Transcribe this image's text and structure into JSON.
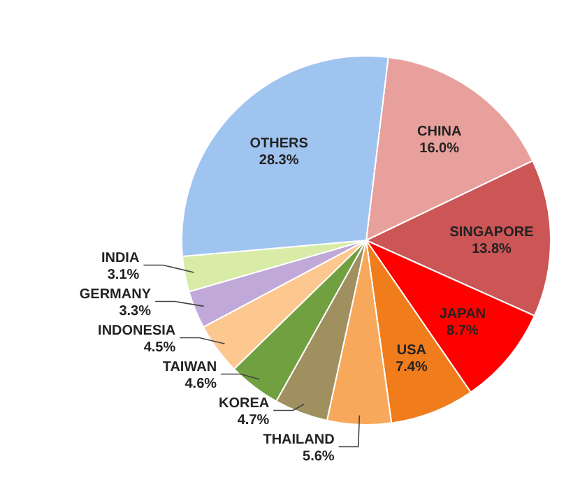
{
  "chart_data": {
    "type": "pie",
    "categories": [
      "CHINA",
      "SINGAPORE",
      "JAPAN",
      "USA",
      "THAILAND",
      "KOREA",
      "TAIWAN",
      "INDONESIA",
      "GERMANY",
      "INDIA",
      "OTHERS"
    ],
    "values": [
      16.0,
      13.8,
      8.7,
      7.4,
      5.6,
      4.7,
      4.6,
      4.5,
      3.3,
      3.1,
      28.3
    ],
    "value_labels": [
      "16.0%",
      "13.8%",
      "8.7%",
      "7.4%",
      "5.6%",
      "4.7%",
      "4.6%",
      "4.5%",
      "3.3%",
      "3.1%",
      "28.3%"
    ],
    "colors": [
      "#e8a09c",
      "#cc5555",
      "#ff0000",
      "#f07c1c",
      "#f8a85a",
      "#a09060",
      "#70a040",
      "#fcc890",
      "#c0a8d8",
      "#d8eca8",
      "#a0c4f0"
    ]
  }
}
